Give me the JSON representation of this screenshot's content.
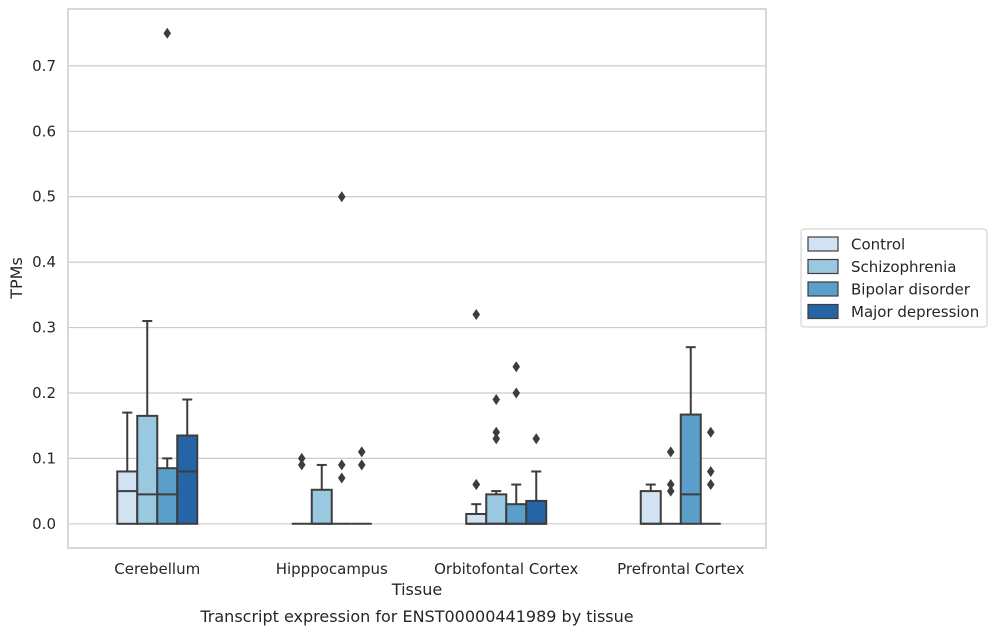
{
  "chart_data": {
    "type": "boxplot",
    "caption": "Transcript expression for ENST00000441989 by tissue",
    "xlabel": "Tissue",
    "ylabel": "TPMs",
    "ylim": [
      -0.037,
      0.787
    ],
    "y_ticks": [
      0.0,
      0.1,
      0.2,
      0.3,
      0.4,
      0.5,
      0.6,
      0.7
    ],
    "y_tick_labels": [
      "0.0",
      "0.1",
      "0.2",
      "0.3",
      "0.4",
      "0.5",
      "0.6",
      "0.7"
    ],
    "grid": true,
    "legend_placement": "center-right outside",
    "categories": [
      "Cerebellum",
      "Hipppocampus",
      "Orbitofontal Cortex",
      "Prefrontal Cortex"
    ],
    "series": [
      {
        "name": "Control",
        "color": "#d1e2f2",
        "boxes": [
          {
            "q1": 0.0,
            "median": 0.05,
            "q3": 0.08,
            "whisker_low": 0.0,
            "whisker_high": 0.17,
            "outliers": []
          },
          {
            "q1": 0.0,
            "median": 0.0,
            "q3": 0.0,
            "whisker_low": 0.0,
            "whisker_high": 0.0,
            "outliers": []
          },
          {
            "q1": 0.0,
            "median": 0.0,
            "q3": 0.015,
            "whisker_low": 0.0,
            "whisker_high": 0.03,
            "outliers": [
              0.06,
              0.06,
              0.32
            ]
          },
          {
            "q1": 0.0,
            "median": 0.0,
            "q3": 0.05,
            "whisker_low": 0.0,
            "whisker_high": 0.06,
            "outliers": []
          }
        ]
      },
      {
        "name": "Schizophrenia",
        "color": "#9ac8e0",
        "boxes": [
          {
            "q1": 0.0,
            "median": 0.045,
            "q3": 0.165,
            "whisker_low": 0.0,
            "whisker_high": 0.31,
            "outliers": []
          },
          {
            "q1": 0.0,
            "median": 0.0,
            "q3": 0.052,
            "whisker_low": 0.0,
            "whisker_high": 0.09,
            "outliers": []
          },
          {
            "q1": 0.0,
            "median": 0.0,
            "q3": 0.045,
            "whisker_low": 0.0,
            "whisker_high": 0.05,
            "outliers": [
              0.13,
              0.14,
              0.19
            ]
          },
          {
            "q1": 0.0,
            "median": 0.0,
            "q3": 0.0,
            "whisker_low": 0.0,
            "whisker_high": 0.0,
            "outliers": [
              0.05,
              0.06,
              0.11
            ]
          }
        ]
      },
      {
        "name": "Bipolar disorder",
        "color": "#5a9ec9",
        "boxes": [
          {
            "q1": 0.0,
            "median": 0.045,
            "q3": 0.085,
            "whisker_low": 0.0,
            "whisker_high": 0.1,
            "outliers": [
              0.75
            ]
          },
          {
            "q1": 0.0,
            "median": 0.0,
            "q3": 0.0,
            "whisker_low": 0.0,
            "whisker_high": 0.0,
            "outliers": [
              0.07,
              0.09,
              0.5
            ]
          },
          {
            "q1": 0.0,
            "median": 0.0,
            "q3": 0.03,
            "whisker_low": 0.0,
            "whisker_high": 0.06,
            "outliers": [
              0.2,
              0.24
            ]
          },
          {
            "q1": 0.0,
            "median": 0.045,
            "q3": 0.167,
            "whisker_low": 0.0,
            "whisker_high": 0.27,
            "outliers": []
          }
        ]
      },
      {
        "name": "Major depression",
        "color": "#2565a5",
        "boxes": [
          {
            "q1": 0.0,
            "median": 0.08,
            "q3": 0.135,
            "whisker_low": 0.0,
            "whisker_high": 0.19,
            "outliers": []
          },
          {
            "q1": 0.0,
            "median": 0.0,
            "q3": 0.0,
            "whisker_low": 0.0,
            "whisker_high": 0.0,
            "outliers": [
              0.09,
              0.11
            ]
          },
          {
            "q1": 0.0,
            "median": 0.0,
            "q3": 0.035,
            "whisker_low": 0.0,
            "whisker_high": 0.08,
            "outliers": [
              0.13
            ]
          },
          {
            "q1": 0.0,
            "median": 0.0,
            "q3": 0.0,
            "whisker_low": 0.0,
            "whisker_high": 0.0,
            "outliers": [
              0.06,
              0.08,
              0.14
            ]
          }
        ]
      }
    ],
    "hipppocampus_control_extra_outliers": [],
    "hipppocampus_control_outliers": [
      0.09,
      0.1
    ]
  }
}
